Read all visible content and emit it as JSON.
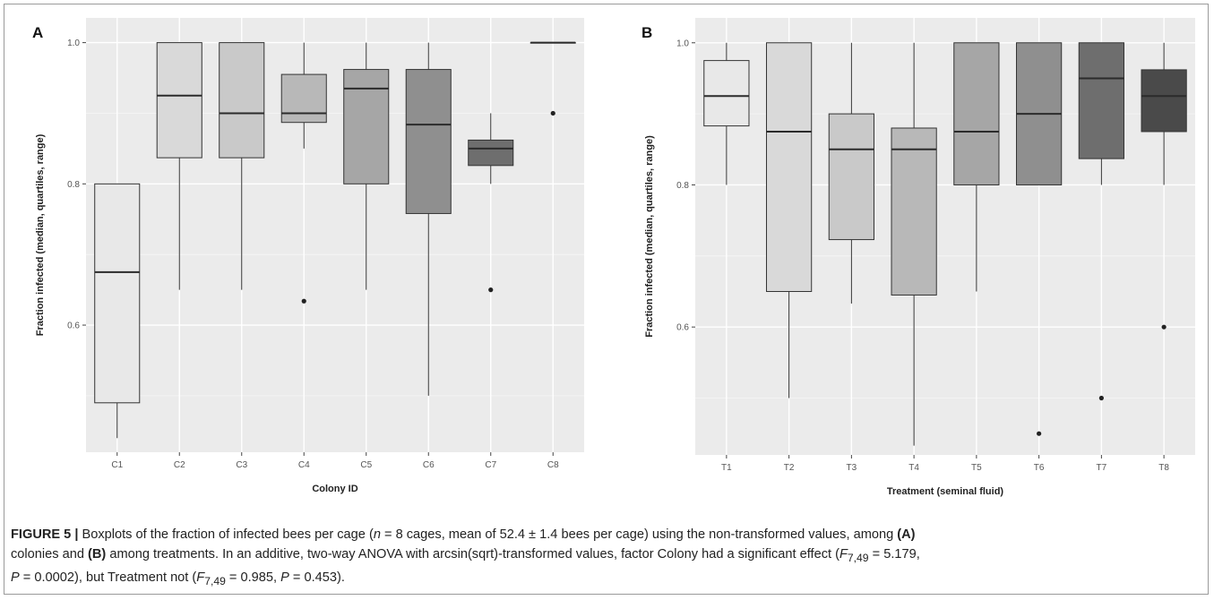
{
  "panels": [
    {
      "letter": "A",
      "ylabel": "Fraction infected (median, quartiles, range)",
      "xlabel": "Colony ID",
      "ytick_labels": [
        "0.6",
        "0.8",
        "1.0"
      ]
    },
    {
      "letter": "B",
      "ylabel": "Fraction infected (median, quartiles, range)",
      "xlabel": "Treatment (seminal fluid)",
      "ytick_labels": [
        "0.6",
        "0.8",
        "1.0"
      ]
    }
  ],
  "chart_data": [
    {
      "type": "boxplot",
      "panel": "A",
      "xlabel": "Colony ID",
      "ylabel": "Fraction infected (median, quartiles, range)",
      "ylim": [
        0.42,
        1.035
      ],
      "yticks": [
        0.6,
        0.8,
        1.0
      ],
      "grid": true,
      "categories": [
        "C1",
        "C2",
        "C3",
        "C4",
        "C5",
        "C6",
        "C7",
        "C8"
      ],
      "boxes": [
        {
          "min": 0.44,
          "q1": 0.49,
          "median": 0.675,
          "q3": 0.8,
          "max": 0.8,
          "outliers": [],
          "fill": "#e8e8e8"
        },
        {
          "min": 0.65,
          "q1": 0.837,
          "median": 0.925,
          "q3": 1.0,
          "max": 1.0,
          "outliers": [],
          "fill": "#d9d9d9"
        },
        {
          "min": 0.65,
          "q1": 0.837,
          "median": 0.9,
          "q3": 1.0,
          "max": 1.0,
          "outliers": [],
          "fill": "#c9c9c9"
        },
        {
          "min": 0.85,
          "q1": 0.887,
          "median": 0.9,
          "q3": 0.955,
          "max": 1.0,
          "outliers": [
            0.634
          ],
          "fill": "#b8b8b8"
        },
        {
          "min": 0.65,
          "q1": 0.8,
          "median": 0.935,
          "q3": 0.962,
          "max": 1.0,
          "outliers": [],
          "fill": "#a6a6a6"
        },
        {
          "min": 0.5,
          "q1": 0.758,
          "median": 0.884,
          "q3": 0.962,
          "max": 1.0,
          "outliers": [],
          "fill": "#8f8f8f"
        },
        {
          "min": 0.8,
          "q1": 0.826,
          "median": 0.85,
          "q3": 0.862,
          "max": 0.9,
          "outliers": [
            0.65
          ],
          "fill": "#6e6e6e"
        },
        {
          "min": 1.0,
          "q1": 1.0,
          "median": 1.0,
          "q3": 1.0,
          "max": 1.0,
          "outliers": [
            0.9
          ],
          "fill": "#4a4a4a"
        }
      ]
    },
    {
      "type": "boxplot",
      "panel": "B",
      "xlabel": "Treatment (seminal fluid)",
      "ylabel": "Fraction infected (median, quartiles, range)",
      "ylim": [
        0.42,
        1.035
      ],
      "yticks": [
        0.6,
        0.8,
        1.0
      ],
      "grid": true,
      "categories": [
        "T1",
        "T2",
        "T3",
        "T4",
        "T5",
        "T6",
        "T7",
        "T8"
      ],
      "boxes": [
        {
          "min": 0.8,
          "q1": 0.883,
          "median": 0.925,
          "q3": 0.975,
          "max": 1.0,
          "outliers": [],
          "fill": "#e8e8e8"
        },
        {
          "min": 0.5,
          "q1": 0.65,
          "median": 0.875,
          "q3": 1.0,
          "max": 1.0,
          "outliers": [],
          "fill": "#d9d9d9"
        },
        {
          "min": 0.633,
          "q1": 0.723,
          "median": 0.85,
          "q3": 0.9,
          "max": 1.0,
          "outliers": [],
          "fill": "#c9c9c9"
        },
        {
          "min": 0.433,
          "q1": 0.645,
          "median": 0.85,
          "q3": 0.88,
          "max": 1.0,
          "outliers": [],
          "fill": "#b8b8b8"
        },
        {
          "min": 0.65,
          "q1": 0.8,
          "median": 0.875,
          "q3": 1.0,
          "max": 1.0,
          "outliers": [],
          "fill": "#a6a6a6"
        },
        {
          "min": 0.8,
          "q1": 0.8,
          "median": 0.9,
          "q3": 1.0,
          "max": 1.0,
          "outliers": [
            0.45
          ],
          "fill": "#8f8f8f"
        },
        {
          "min": 0.8,
          "q1": 0.837,
          "median": 0.95,
          "q3": 1.0,
          "max": 1.0,
          "outliers": [
            0.5
          ],
          "fill": "#6e6e6e"
        },
        {
          "min": 0.8,
          "q1": 0.875,
          "median": 0.925,
          "q3": 0.962,
          "max": 1.0,
          "outliers": [
            0.6
          ],
          "fill": "#4a4a4a"
        }
      ]
    }
  ],
  "caption": {
    "figure_label": "FIGURE 5 |",
    "line1_a": " Boxplots of the fraction of infected bees per cage (",
    "n_var": "n",
    "line1_b": " = 8 cages, mean of 52.4 ± 1.4 bees per cage) using the non-transformed values, among ",
    "ref_a": "(A)",
    "line2_a": " colonies and ",
    "ref_b": "(B)",
    "line2_b": " among treatments. In an additive, two-way ANOVA with arcsin(sqrt)-transformed values, factor Colony had a significant effect (",
    "f_var_1": "F",
    "f_sub_1": "7,49",
    "stat_1": " = 5.179,",
    "p_var_1": "P",
    "p_val_1": " = 0.0002), but Treatment not (",
    "f_var_2": "F",
    "f_sub_2": "7,49",
    "stat_2": " = 0.985, ",
    "p_var_2": "P",
    "p_val_2": " = 0.453)."
  }
}
